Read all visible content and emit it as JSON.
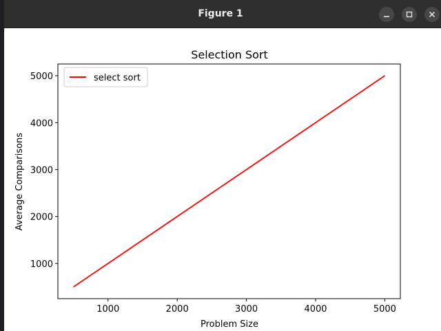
{
  "window": {
    "title": "Figure 1",
    "minimize_glyph": "–",
    "close_glyph": "✕"
  },
  "chart_data": {
    "type": "line",
    "title": "Selection Sort",
    "xlabel": "Problem Size",
    "ylabel": "Average Comparisons",
    "xlim": [
      275,
      5225
    ],
    "ylim": [
      250,
      5250
    ],
    "xticks": [
      1000,
      2000,
      3000,
      4000,
      5000
    ],
    "yticks": [
      1000,
      2000,
      3000,
      4000,
      5000
    ],
    "grid": false,
    "legend_position": "upper-left",
    "series": [
      {
        "name": "select sort",
        "color": "#ff0000",
        "x": [
          500,
          1000,
          1500,
          2000,
          2500,
          3000,
          3500,
          4000,
          4500,
          5000
        ],
        "y": [
          500,
          1000,
          1500,
          2000,
          2500,
          3000,
          3500,
          4000,
          4500,
          5000
        ]
      }
    ]
  }
}
